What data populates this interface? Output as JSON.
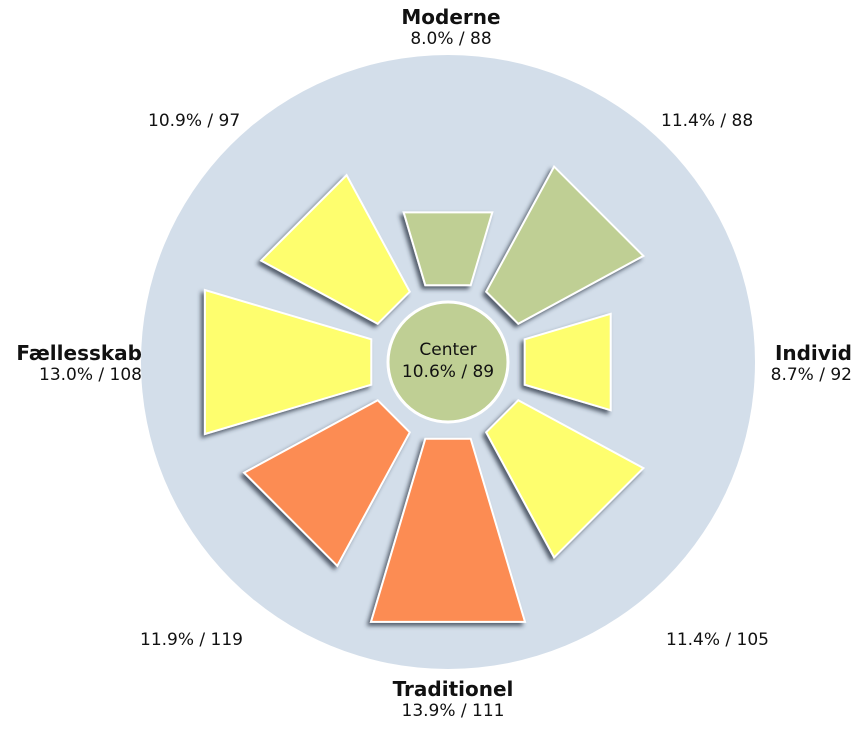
{
  "chart_data": {
    "type": "polar-area",
    "colors": {
      "background_disc": "#d3deea",
      "green": "#bfcf94",
      "yellow": "#fefe6e",
      "orange": "#fc8c53"
    },
    "segments": [
      {
        "name": "Moderne",
        "value_label": "8.0% / 88",
        "percent": 8.0,
        "index": 88,
        "color": "green"
      },
      {
        "name": "",
        "value_label": "11.4% / 88",
        "percent": 11.4,
        "index": 88,
        "color": "green"
      },
      {
        "name": "Individ",
        "value_label": "8.7% / 92",
        "percent": 8.7,
        "index": 92,
        "color": "yellow"
      },
      {
        "name": "",
        "value_label": "11.4% / 105",
        "percent": 11.4,
        "index": 105,
        "color": "yellow"
      },
      {
        "name": "Traditionel",
        "value_label": "13.9% / 111",
        "percent": 13.9,
        "index": 111,
        "color": "orange"
      },
      {
        "name": "",
        "value_label": "11.9% / 119",
        "percent": 11.9,
        "index": 119,
        "color": "orange"
      },
      {
        "name": "Fællesskab",
        "value_label": "13.0% / 108",
        "percent": 13.0,
        "index": 108,
        "color": "yellow"
      },
      {
        "name": "",
        "value_label": "10.9% / 97",
        "percent": 10.9,
        "index": 97,
        "color": "yellow"
      }
    ],
    "center": {
      "name": "Center",
      "value_label": "10.6% / 89",
      "percent": 10.6,
      "index": 89,
      "color": "green"
    }
  }
}
